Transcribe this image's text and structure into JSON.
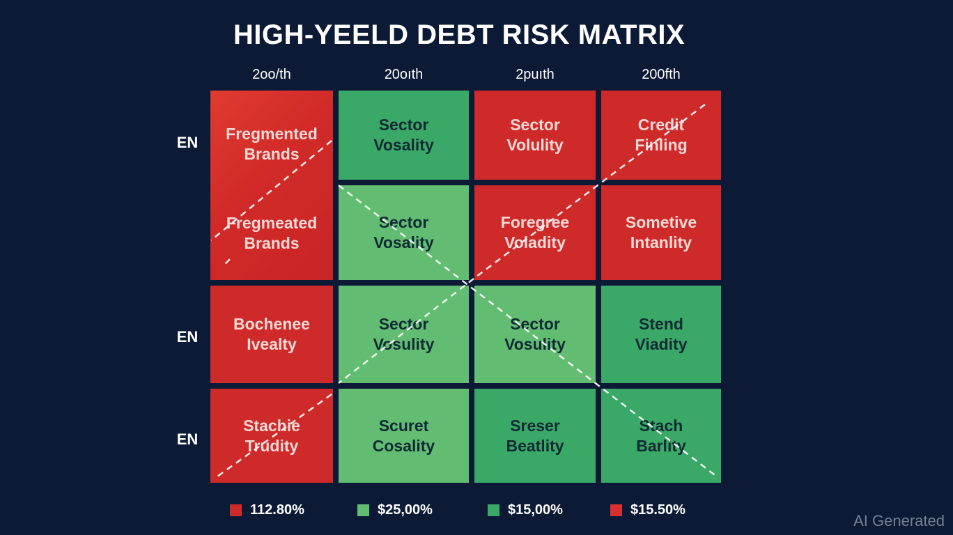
{
  "title": "HIGH-YEELD DEBT RISK MATRIX",
  "columns": [
    "2oo/th",
    "20oıth",
    "2puıth",
    "200fth"
  ],
  "rows": [
    "EN",
    "EN",
    "EN"
  ],
  "cells": {
    "fragmented_top": "Fregmented\nBrands",
    "fragmented_bottom": "Fregmeated\nBrands",
    "r1c2": "Sector\nVosality",
    "r1c3": "Sector\nVolulity",
    "r1c4": "Credit\nFinling",
    "r2c2": "Sector\nVosality",
    "r2c3": "Foregree\nVoladity",
    "r2c4": "Sometive\nIntanlity",
    "r3c1": "Bochenee\nIvealty",
    "r3c2": "Sector\nVosulity",
    "r3c3": "Sector\nVosulity",
    "r3c4": "Stend\nViadity",
    "r4c1": "Stachie\nTrudity",
    "r4c2": "Scuret\nCosality",
    "r4c3": "Sreser\nBeatlity",
    "r4c4": "Stach\nBarlity"
  },
  "legend": [
    {
      "label": "112.80%",
      "color": "#cf2a2a"
    },
    {
      "label": "$25,00%",
      "color": "#62bd72"
    },
    {
      "label": "$15,00%",
      "color": "#3aa866"
    },
    {
      "label": "$15.50%",
      "color": "#d83030"
    }
  ],
  "colors": {
    "background": "#0c1a36",
    "red": "#cf2a2a",
    "green_dark": "#3aa866",
    "green_light": "#62bd72"
  },
  "watermark": "AI Generated"
}
